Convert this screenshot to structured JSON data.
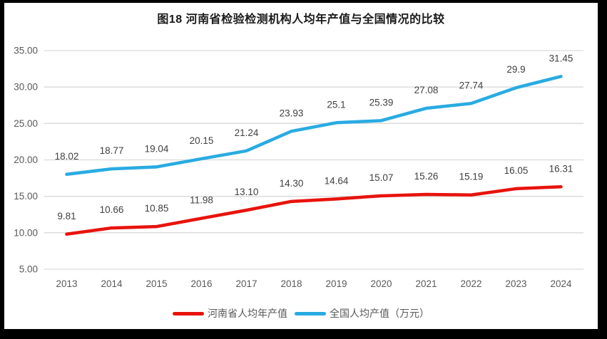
{
  "chart_data": {
    "type": "line",
    "title": "图18  河南省检验检测机构人均年产值与全国情况的比较",
    "categories": [
      "2013",
      "2014",
      "2015",
      "2016",
      "2017",
      "2018",
      "2019",
      "2020",
      "2021",
      "2022",
      "2023",
      "2024"
    ],
    "series": [
      {
        "name": "河南省人均年产值",
        "color": "#e8130c",
        "values": [
          9.81,
          10.66,
          10.85,
          11.98,
          13.1,
          14.3,
          14.64,
          15.07,
          15.26,
          15.19,
          16.05,
          16.31
        ],
        "labels": [
          "9.81",
          "10.66",
          "10.85",
          "11.98",
          "13.10",
          "14.30",
          "14.64",
          "15.07",
          "15.26",
          "15.19",
          "16.05",
          "16.31"
        ]
      },
      {
        "name": "全国人均产值（万元）",
        "color": "#29abe2",
        "values": [
          18.02,
          18.77,
          19.04,
          20.15,
          21.24,
          23.93,
          25.1,
          25.39,
          27.08,
          27.74,
          29.9,
          31.45
        ],
        "labels": [
          "18.02",
          "18.77",
          "19.04",
          "20.15",
          "21.24",
          "23.93",
          "25.1",
          "25.39",
          "27.08",
          "27.74",
          "29.9",
          "31.45"
        ]
      }
    ],
    "ylim": [
      5,
      35
    ],
    "y_tick_labels": [
      "5.00",
      "10.00",
      "15.00",
      "20.00",
      "25.00",
      "30.00",
      "35.00"
    ],
    "y_tick_values": [
      5,
      10,
      15,
      20,
      25,
      30,
      35
    ],
    "grid": "horizontal",
    "legend_position": "bottom",
    "colors": {
      "gridline": "#d9d9d9",
      "tick_text": "#595959",
      "data_label_text": "#404040",
      "plot_background": "#ffffff",
      "frame_border": "#000000"
    }
  }
}
